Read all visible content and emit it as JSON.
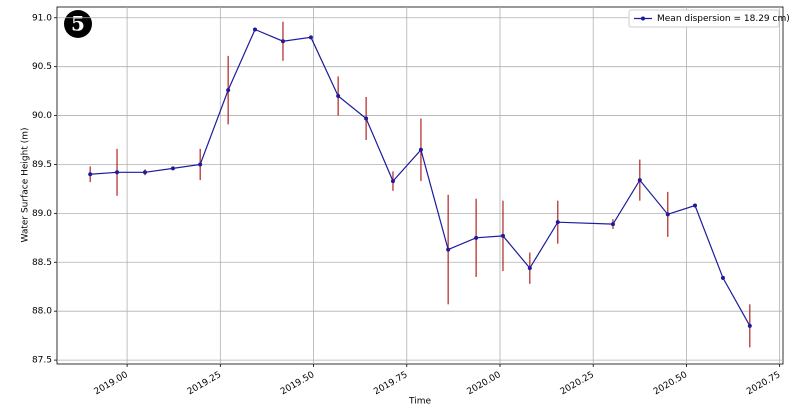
{
  "badge": "5",
  "chart_data": {
    "type": "line",
    "x_label": "Time",
    "y_label": "Water Surface Height (m)",
    "x": [
      2018.901,
      2018.973,
      2019.048,
      2019.123,
      2019.196,
      2019.271,
      2019.343,
      2019.418,
      2019.493,
      2019.566,
      2019.641,
      2019.713,
      2019.788,
      2019.861,
      2019.936,
      2020.008,
      2020.08,
      2020.155,
      2020.303,
      2020.375,
      2020.45,
      2020.523,
      2020.598,
      2020.67
    ],
    "series": [
      {
        "name": "Mean dispersion = 18.29 cm)",
        "color": "#1c1c9c",
        "error_color": "#b22222",
        "values": [
          89.4,
          89.42,
          89.42,
          89.46,
          89.5,
          90.26,
          90.88,
          90.76,
          90.8,
          90.2,
          89.97,
          89.33,
          89.65,
          88.63,
          88.75,
          88.77,
          88.44,
          88.91,
          88.89,
          89.34,
          88.99,
          89.08,
          88.34,
          87.85
        ],
        "errors": [
          0.08,
          0.24,
          0.03,
          0.01,
          0.16,
          0.35,
          0.01,
          0.2,
          0.01,
          0.2,
          0.22,
          0.1,
          0.32,
          0.56,
          0.4,
          0.36,
          0.16,
          0.22,
          0.05,
          0.21,
          0.23,
          0.02,
          0.02,
          0.22
        ]
      }
    ],
    "xlim": [
      2018.812,
      2020.759
    ],
    "ylim": [
      87.46,
      91.11
    ],
    "xticks": [
      {
        "value": 2019,
        "label": "2019.00"
      },
      2019.25,
      {
        "value": 2019.5,
        "label": "2019.50"
      },
      2019.75,
      {
        "value": 2020,
        "label": "2020.00"
      },
      2020.25,
      {
        "value": 2020.5,
        "label": "2020.50"
      },
      2020.75
    ],
    "yticks": [
      87.5,
      {
        "value": 88,
        "label": "88.0"
      },
      88.5,
      {
        "value": 89,
        "label": "89.0"
      },
      89.5,
      {
        "value": 90,
        "label": "90.0"
      },
      90.5,
      {
        "value": 91,
        "label": "91.0"
      }
    ],
    "grid": true,
    "legend": "upper right"
  }
}
